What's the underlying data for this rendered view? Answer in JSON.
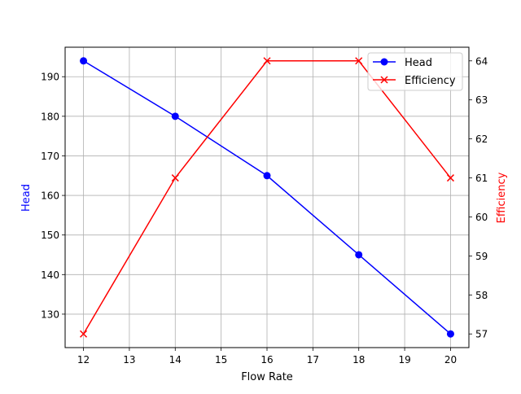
{
  "chart_data": {
    "type": "line",
    "title": "",
    "xlabel": "Flow Rate",
    "ylabel": "Head",
    "y2label": "Efficiency",
    "x": [
      12,
      14,
      16,
      18,
      20
    ],
    "xticks": [
      12,
      13,
      14,
      15,
      16,
      17,
      18,
      19,
      20
    ],
    "yticks": [
      130,
      140,
      150,
      160,
      170,
      180,
      190
    ],
    "y2ticks": [
      57,
      58,
      59,
      60,
      61,
      62,
      63,
      64
    ],
    "xlim": [
      11.6,
      20.4
    ],
    "ylim": [
      121.55,
      197.45
    ],
    "y2lim": [
      56.65,
      64.35
    ],
    "grid": true,
    "legend_position": "upper right",
    "series": [
      {
        "name": "Head",
        "axis": "left",
        "color": "#0000ff",
        "marker": "o",
        "values": [
          194,
          180,
          165,
          145,
          125
        ]
      },
      {
        "name": "Efficiency",
        "axis": "right",
        "color": "#ff0000",
        "marker": "x",
        "values": [
          57,
          61,
          64,
          64,
          61
        ]
      }
    ]
  },
  "colors": {
    "head": "#0000ff",
    "efficiency": "#ff0000",
    "grid": "#b0b0b0",
    "axis": "#000000"
  }
}
